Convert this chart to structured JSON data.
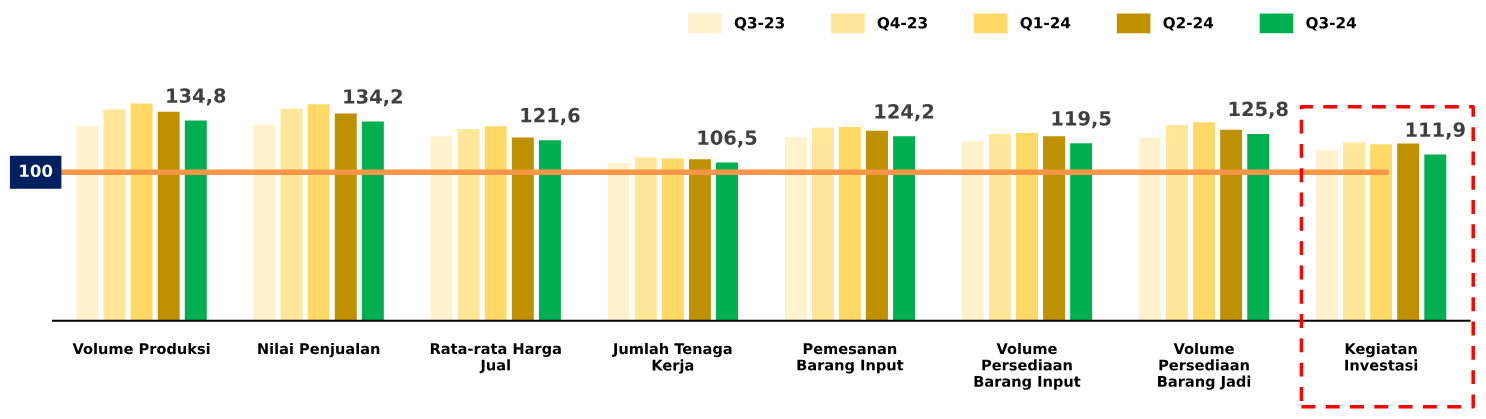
{
  "chart_data": {
    "type": "bar",
    "categories": [
      "Volume Produksi",
      "Nilai Penjualan",
      "Rata-rata Harga\nJual",
      "Jumlah Tenaga\nKerja",
      "Pemesanan\nBarang Input",
      "Volume\nPersediaan\nBarang Input",
      "Volume\nPersediaan\nBarang Jadi",
      "Kegiatan\nInvestasi"
    ],
    "series": [
      {
        "name": "Q3-23",
        "color": "#fff2cc",
        "values": [
          131.0,
          131.9,
          124.3,
          106.3,
          123.6,
          120.9,
          123.0,
          114.8
        ]
      },
      {
        "name": "Q4-23",
        "color": "#ffe699",
        "values": [
          142.3,
          142.8,
          129.1,
          110.0,
          130.0,
          125.7,
          131.9,
          120.0
        ]
      },
      {
        "name": "Q1-24",
        "color": "#ffd966",
        "values": [
          146.4,
          145.8,
          131.0,
          109.3,
          130.5,
          126.4,
          133.7,
          118.9
        ]
      },
      {
        "name": "Q2-24",
        "color": "#bf9000",
        "values": [
          140.7,
          139.6,
          123.4,
          108.8,
          128.0,
          124.3,
          128.6,
          119.3
        ]
      },
      {
        "name": "Q3-24",
        "color": "#00b050",
        "values": [
          134.8,
          134.2,
          121.6,
          106.5,
          124.2,
          119.5,
          125.8,
          111.9
        ],
        "value_labels": [
          "134,8",
          "134,2",
          "121,6",
          "106,5",
          "124,2",
          "119,5",
          "125,8",
          "111,9"
        ]
      }
    ],
    "ref_lines": [
      {
        "axis": "y",
        "value": 100,
        "label": "100",
        "color": "#f79646"
      }
    ],
    "legend": "top right"
  }
}
